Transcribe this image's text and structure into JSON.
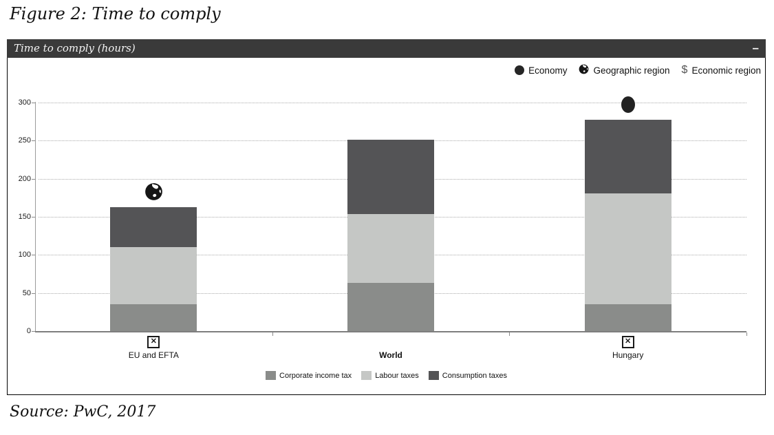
{
  "figure_title": "Figure 2: Time to comply",
  "panel": {
    "header_title": "Time to comply (hours)",
    "minimize_glyph": "–"
  },
  "marker_legend": [
    {
      "icon": "economy-dot-icon",
      "label": "Economy"
    },
    {
      "icon": "globe-icon",
      "label": "Geographic region"
    },
    {
      "icon": "dollar-icon",
      "glyph": "$",
      "label": "Economic region"
    }
  ],
  "source_note": "Source: PwC, 2017",
  "colors": {
    "header_bg": "#3a3a3a",
    "corporate_income_tax": "#8a8c8a",
    "labour_taxes": "#c5c7c5",
    "consumption_taxes": "#545456",
    "gridline": "#aaaaaa",
    "axis": "#8a8a8a"
  },
  "chart_data": {
    "type": "bar",
    "stacked": true,
    "title": "Time to comply (hours)",
    "categories": [
      "EU and EFTA",
      "World",
      "Hungary"
    ],
    "series": [
      {
        "name": "Corporate income tax",
        "color": "#8a8c8a",
        "values": [
          35,
          63,
          35
        ]
      },
      {
        "name": "Labour taxes",
        "color": "#c5c7c5",
        "values": [
          75,
          91,
          146
        ]
      },
      {
        "name": "Consumption taxes",
        "color": "#545456",
        "values": [
          53,
          97,
          96
        ]
      }
    ],
    "totals": [
      163,
      251,
      277
    ],
    "ylim": [
      0,
      300
    ],
    "yticks": [
      0,
      50,
      100,
      150,
      200,
      250,
      300
    ],
    "grid": "horizontal-dotted",
    "legend_position": "bottom-center",
    "category_markers": [
      {
        "category": "EU and EFTA",
        "marker": "Geographic region",
        "icon": "globe-icon",
        "value": 183
      },
      {
        "category": "Hungary",
        "marker": "Economy",
        "icon": "economy-dot-icon",
        "value": 297
      }
    ],
    "category_checkboxes": [
      "EU and EFTA",
      "Hungary"
    ],
    "checkbox_glyph": "✕",
    "bold_categories": [
      "World"
    ]
  }
}
